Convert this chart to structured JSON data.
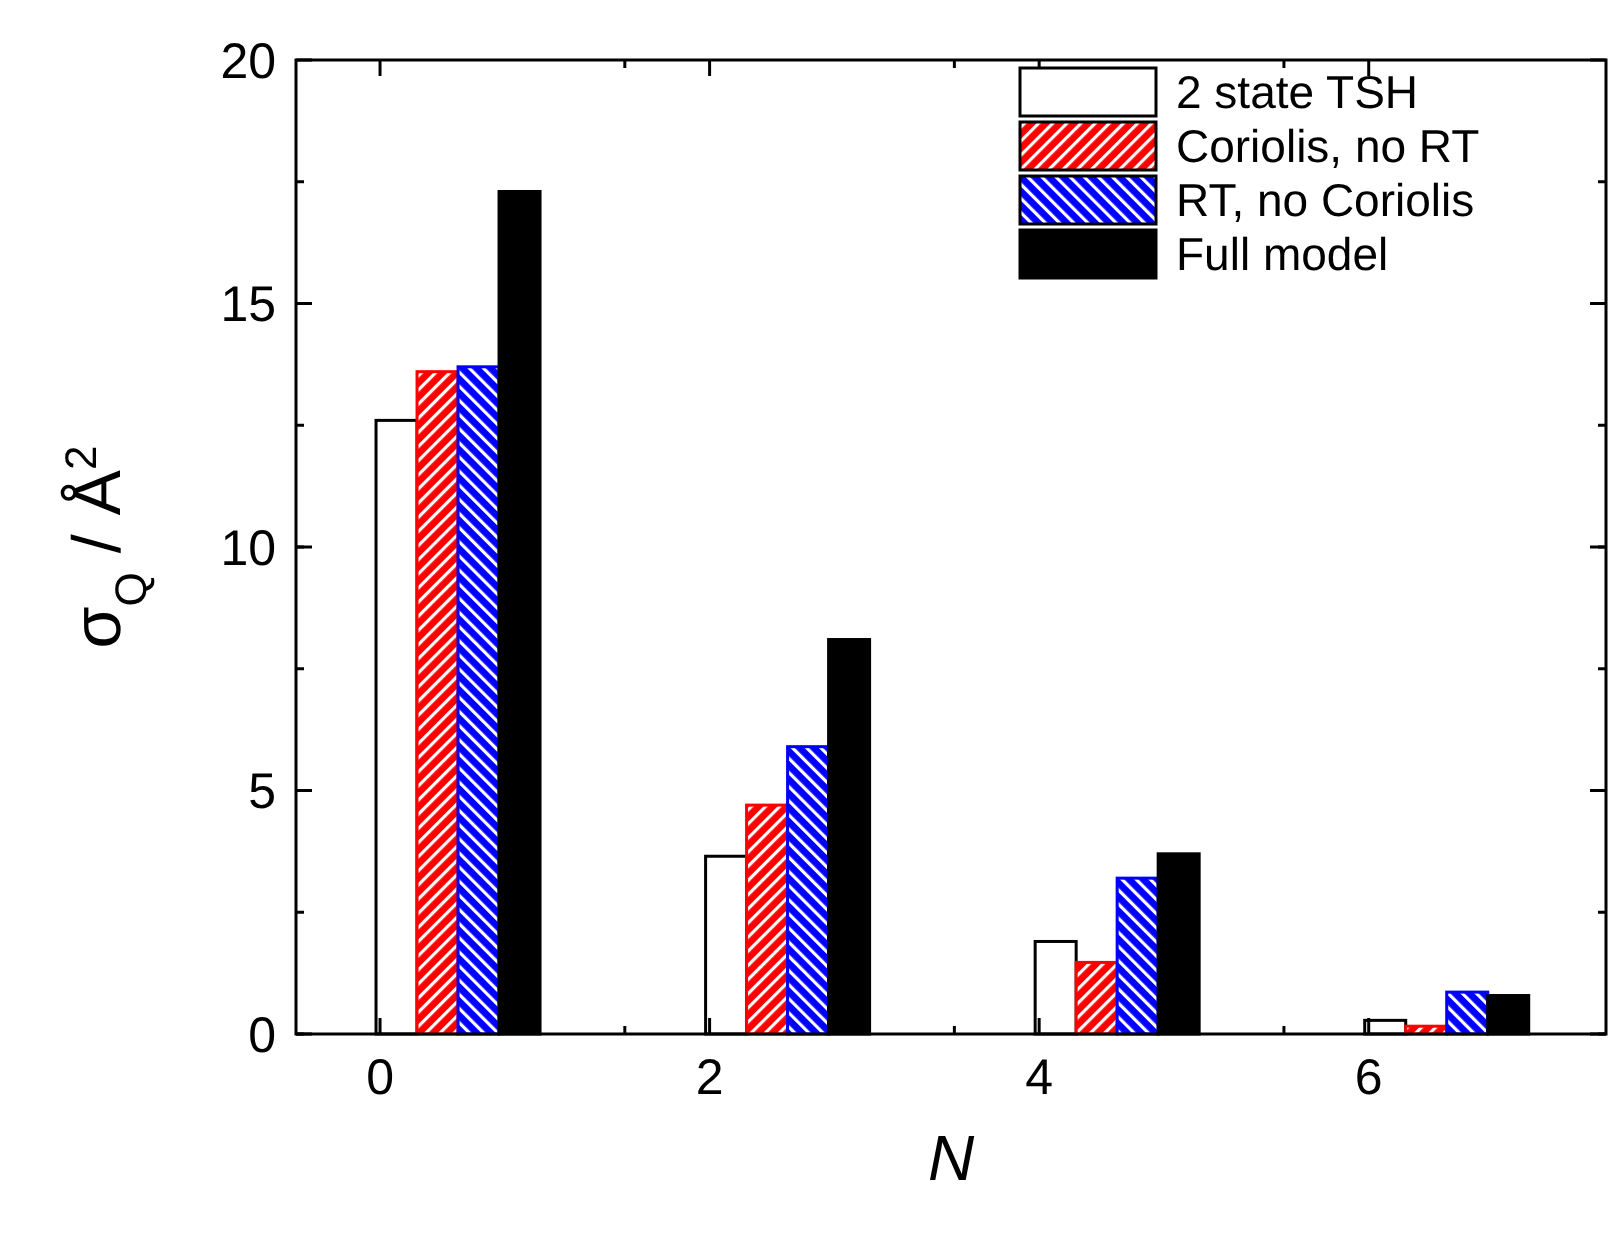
{
  "chart_data": {
    "type": "bar",
    "xlabel": "N",
    "ylabel": "σ$_{Q}$ / Å$^{2}$",
    "categories": [
      "0",
      "2",
      "4",
      "6"
    ],
    "series": [
      {
        "name": "2 state TSH",
        "color": "#ffffff",
        "values": [
          12.6,
          3.65,
          1.9,
          0.28
        ]
      },
      {
        "name": "Coriolis, no RT",
        "color": "#ff0000",
        "values": [
          13.6,
          4.7,
          1.47,
          0.16
        ]
      },
      {
        "name": "RT, no Coriolis",
        "color": "#0000ff",
        "values": [
          13.7,
          5.9,
          3.2,
          0.86
        ]
      },
      {
        "name": "Full model",
        "color": "#000000",
        "values": [
          17.3,
          8.1,
          3.7,
          0.79
        ]
      }
    ],
    "ylim": [
      0,
      20
    ],
    "yticks": [
      0,
      5,
      10,
      15,
      20
    ],
    "grid": false,
    "legend": "top right"
  }
}
